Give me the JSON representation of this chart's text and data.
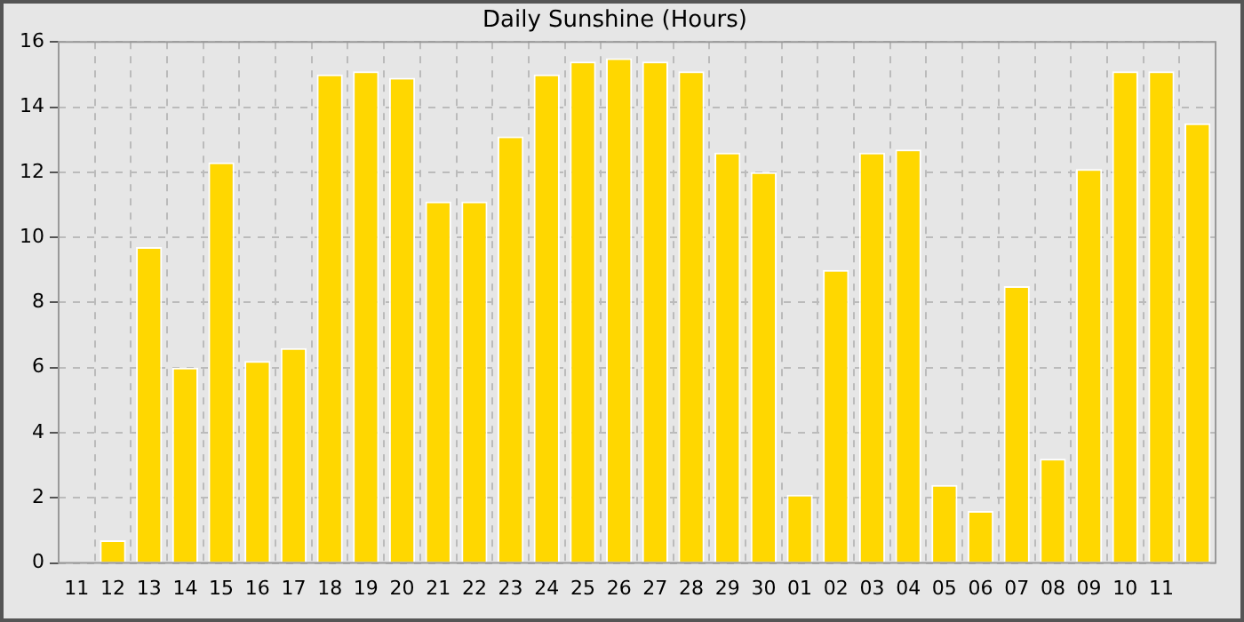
{
  "chart_data": {
    "type": "bar",
    "title": "Daily Sunshine (Hours)",
    "categories": [
      "11",
      "12",
      "13",
      "14",
      "15",
      "16",
      "17",
      "18",
      "19",
      "20",
      "21",
      "22",
      "23",
      "24",
      "25",
      "26",
      "27",
      "28",
      "29",
      "30",
      "01",
      "02",
      "03",
      "04",
      "05",
      "06",
      "07",
      "08",
      "09",
      "10",
      "11",
      null
    ],
    "values": [
      null,
      0.7,
      9.7,
      6.0,
      12.3,
      6.2,
      6.6,
      15.0,
      15.1,
      14.9,
      11.1,
      11.1,
      13.1,
      15.0,
      15.4,
      15.5,
      15.4,
      15.1,
      12.6,
      12.0,
      2.1,
      9.0,
      12.6,
      12.7,
      2.4,
      1.6,
      8.5,
      3.2,
      12.1,
      15.1,
      15.1,
      13.5
    ],
    "color": "#ffd700",
    "ylim": [
      0,
      16
    ],
    "yticks": [
      0,
      2,
      4,
      6,
      8,
      10,
      12,
      14,
      16
    ],
    "grid": true
  }
}
